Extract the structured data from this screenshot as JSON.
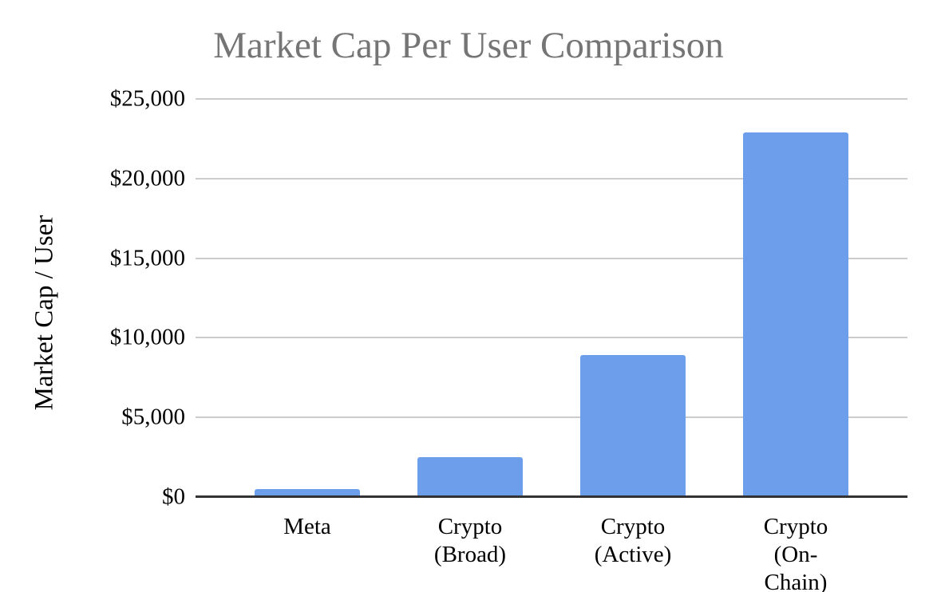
{
  "page": {
    "background": "#ffffff"
  },
  "chart_data": {
    "type": "bar",
    "title": "Market Cap Per User Comparison",
    "xlabel": "",
    "ylabel": "Market Cap / User",
    "categories": [
      "Meta",
      "Crypto\n(Broad)",
      "Crypto\n(Active)",
      "Crypto\n(On-Chain)"
    ],
    "values": [
      500,
      2500,
      8900,
      22900
    ],
    "ylim": [
      0,
      25000
    ],
    "ytick_step": 5000,
    "yticks": [
      "$0",
      "$5,000",
      "$10,000",
      "$15,000",
      "$20,000",
      "$25,000"
    ],
    "grid": true,
    "legend": "none",
    "colors": {
      "bar": "#6d9eeb",
      "title": "#757575",
      "gridline": "#cccccc",
      "axis_line": "#333333",
      "tick_label": "#000000"
    }
  }
}
